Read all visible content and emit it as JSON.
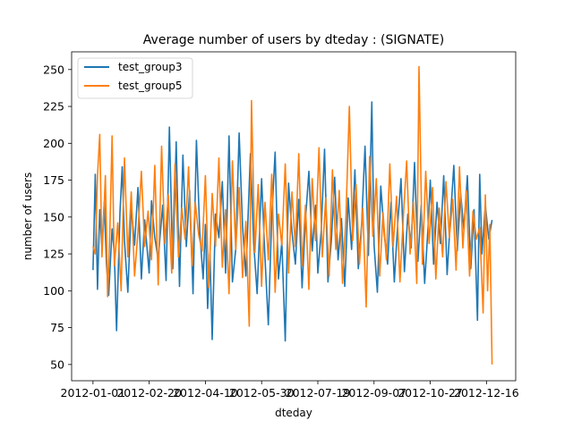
{
  "chart_data": {
    "type": "line",
    "title": "Average number of users by dteday : (SIGNATE)",
    "xlabel": "dteday",
    "ylabel": "number of users",
    "x_range": [
      "2011-12-13",
      "2013-01-11"
    ],
    "ylim": [
      39,
      262
    ],
    "x_ticks": [
      "2012-01-01",
      "2012-02-20",
      "2012-04-10",
      "2012-05-30",
      "2012-07-19",
      "2012-09-07",
      "2012-10-27",
      "2012-12-16"
    ],
    "y_ticks": [
      50,
      75,
      100,
      125,
      150,
      175,
      200,
      225,
      250
    ],
    "legend_position": "top-left",
    "grid": false,
    "series": [
      {
        "name": "test_group3",
        "color": "#1f77b4",
        "points": [
          [
            "2012-01-01",
            114
          ],
          [
            "2012-01-03",
            179
          ],
          [
            "2012-01-05",
            101
          ],
          [
            "2012-01-07",
            155
          ],
          [
            "2012-01-09",
            128
          ],
          [
            "2012-01-11",
            160
          ],
          [
            "2012-01-13",
            118
          ],
          [
            "2012-01-15",
            97
          ],
          [
            "2012-01-18",
            142
          ],
          [
            "2012-01-20",
            125
          ],
          [
            "2012-01-22",
            73
          ],
          [
            "2012-01-25",
            153
          ],
          [
            "2012-01-27",
            184
          ],
          [
            "2012-01-29",
            134
          ],
          [
            "2012-02-01",
            99
          ],
          [
            "2012-02-04",
            157
          ],
          [
            "2012-02-07",
            131
          ],
          [
            "2012-02-10",
            170
          ],
          [
            "2012-02-13",
            108
          ],
          [
            "2012-02-16",
            148
          ],
          [
            "2012-02-20",
            112
          ],
          [
            "2012-02-22",
            161
          ],
          [
            "2012-02-25",
            136
          ],
          [
            "2012-02-28",
            121
          ],
          [
            "2012-03-03",
            158
          ],
          [
            "2012-03-06",
            107
          ],
          [
            "2012-03-09",
            211
          ],
          [
            "2012-03-12",
            115
          ],
          [
            "2012-03-15",
            201
          ],
          [
            "2012-03-18",
            103
          ],
          [
            "2012-03-21",
            192
          ],
          [
            "2012-03-24",
            130
          ],
          [
            "2012-03-27",
            168
          ],
          [
            "2012-03-30",
            98
          ],
          [
            "2012-04-02",
            202
          ],
          [
            "2012-04-05",
            140
          ],
          [
            "2012-04-08",
            108
          ],
          [
            "2012-04-10",
            145
          ],
          [
            "2012-04-12",
            88
          ],
          [
            "2012-04-14",
            125
          ],
          [
            "2012-04-16",
            67
          ],
          [
            "2012-04-19",
            152
          ],
          [
            "2012-04-22",
            136
          ],
          [
            "2012-04-25",
            174
          ],
          [
            "2012-04-28",
            112
          ],
          [
            "2012-05-01",
            205
          ],
          [
            "2012-05-04",
            106
          ],
          [
            "2012-05-07",
            128
          ],
          [
            "2012-05-10",
            207
          ],
          [
            "2012-05-13",
            144
          ],
          [
            "2012-05-16",
            110
          ],
          [
            "2012-05-20",
            193
          ],
          [
            "2012-05-23",
            132
          ],
          [
            "2012-05-26",
            98
          ],
          [
            "2012-05-30",
            176
          ],
          [
            "2012-06-02",
            122
          ],
          [
            "2012-06-05",
            77
          ],
          [
            "2012-06-08",
            150
          ],
          [
            "2012-06-11",
            194
          ],
          [
            "2012-06-14",
            108
          ],
          [
            "2012-06-17",
            133
          ],
          [
            "2012-06-20",
            66
          ],
          [
            "2012-06-23",
            173
          ],
          [
            "2012-06-26",
            140
          ],
          [
            "2012-06-29",
            118
          ],
          [
            "2012-07-02",
            162
          ],
          [
            "2012-07-05",
            102
          ],
          [
            "2012-07-08",
            148
          ],
          [
            "2012-07-11",
            181
          ],
          [
            "2012-07-14",
            127
          ],
          [
            "2012-07-17",
            158
          ],
          [
            "2012-07-19",
            112
          ],
          [
            "2012-07-22",
            141
          ],
          [
            "2012-07-25",
            196
          ],
          [
            "2012-07-28",
            106
          ],
          [
            "2012-07-31",
            134
          ],
          [
            "2012-08-03",
            177
          ],
          [
            "2012-08-06",
            121
          ],
          [
            "2012-08-09",
            149
          ],
          [
            "2012-08-12",
            103
          ],
          [
            "2012-08-15",
            163
          ],
          [
            "2012-08-18",
            128
          ],
          [
            "2012-08-21",
            182
          ],
          [
            "2012-08-24",
            115
          ],
          [
            "2012-08-27",
            146
          ],
          [
            "2012-08-30",
            198
          ],
          [
            "2012-09-02",
            124
          ],
          [
            "2012-09-05",
            228
          ],
          [
            "2012-09-07",
            131
          ],
          [
            "2012-09-10",
            99
          ],
          [
            "2012-09-13",
            171
          ],
          [
            "2012-09-16",
            139
          ],
          [
            "2012-09-19",
            118
          ],
          [
            "2012-09-22",
            160
          ],
          [
            "2012-09-25",
            106
          ],
          [
            "2012-09-28",
            145
          ],
          [
            "2012-10-01",
            176
          ],
          [
            "2012-10-04",
            113
          ],
          [
            "2012-10-07",
            152
          ],
          [
            "2012-10-10",
            129
          ],
          [
            "2012-10-13",
            187
          ],
          [
            "2012-10-16",
            120
          ],
          [
            "2012-10-19",
            158
          ],
          [
            "2012-10-22",
            105
          ],
          [
            "2012-10-25",
            143
          ],
          [
            "2012-10-27",
            175
          ],
          [
            "2012-10-30",
            118
          ],
          [
            "2012-11-02",
            160
          ],
          [
            "2012-11-05",
            132
          ],
          [
            "2012-11-08",
            178
          ],
          [
            "2012-11-11",
            111
          ],
          [
            "2012-11-14",
            150
          ],
          [
            "2012-11-17",
            185
          ],
          [
            "2012-11-20",
            127
          ],
          [
            "2012-11-23",
            166
          ],
          [
            "2012-11-26",
            141
          ],
          [
            "2012-11-29",
            178
          ],
          [
            "2012-12-02",
            115
          ],
          [
            "2012-12-05",
            155
          ],
          [
            "2012-12-08",
            80
          ],
          [
            "2012-12-10",
            179
          ],
          [
            "2012-12-12",
            125
          ],
          [
            "2012-12-15",
            158
          ],
          [
            "2012-12-18",
            135
          ],
          [
            "2012-12-21",
            148
          ]
        ]
      },
      {
        "name": "test_group5",
        "color": "#ff7f0e",
        "points": [
          [
            "2012-01-01",
            130
          ],
          [
            "2012-01-03",
            125
          ],
          [
            "2012-01-05",
            178
          ],
          [
            "2012-01-07",
            206
          ],
          [
            "2012-01-09",
            123
          ],
          [
            "2012-01-12",
            178
          ],
          [
            "2012-01-14",
            96
          ],
          [
            "2012-01-16",
            140
          ],
          [
            "2012-01-18",
            205
          ],
          [
            "2012-01-20",
            117
          ],
          [
            "2012-01-23",
            146
          ],
          [
            "2012-01-26",
            100
          ],
          [
            "2012-01-29",
            190
          ],
          [
            "2012-02-01",
            123
          ],
          [
            "2012-02-04",
            167
          ],
          [
            "2012-02-07",
            110
          ],
          [
            "2012-02-10",
            140
          ],
          [
            "2012-02-13",
            181
          ],
          [
            "2012-02-16",
            130
          ],
          [
            "2012-02-19",
            154
          ],
          [
            "2012-02-22",
            121
          ],
          [
            "2012-02-25",
            185
          ],
          [
            "2012-02-28",
            104
          ],
          [
            "2012-03-02",
            198
          ],
          [
            "2012-03-05",
            132
          ],
          [
            "2012-03-08",
            165
          ],
          [
            "2012-03-11",
            112
          ],
          [
            "2012-03-14",
            186
          ],
          [
            "2012-03-17",
            123
          ],
          [
            "2012-03-20",
            156
          ],
          [
            "2012-03-23",
            135
          ],
          [
            "2012-03-26",
            184
          ],
          [
            "2012-03-29",
            117
          ],
          [
            "2012-04-01",
            160
          ],
          [
            "2012-04-04",
            138
          ],
          [
            "2012-04-07",
            127
          ],
          [
            "2012-04-10",
            178
          ],
          [
            "2012-04-13",
            102
          ],
          [
            "2012-04-16",
            166
          ],
          [
            "2012-04-19",
            130
          ],
          [
            "2012-04-22",
            190
          ],
          [
            "2012-04-25",
            116
          ],
          [
            "2012-04-28",
            155
          ],
          [
            "2012-05-01",
            98
          ],
          [
            "2012-05-04",
            188
          ],
          [
            "2012-05-07",
            128
          ],
          [
            "2012-05-10",
            170
          ],
          [
            "2012-05-13",
            109
          ],
          [
            "2012-05-16",
            147
          ],
          [
            "2012-05-19",
            76
          ],
          [
            "2012-05-21",
            229
          ],
          [
            "2012-05-24",
            126
          ],
          [
            "2012-05-27",
            172
          ],
          [
            "2012-05-30",
            103
          ],
          [
            "2012-06-02",
            160
          ],
          [
            "2012-06-05",
            121
          ],
          [
            "2012-06-08",
            179
          ],
          [
            "2012-06-11",
            99
          ],
          [
            "2012-06-14",
            152
          ],
          [
            "2012-06-17",
            131
          ],
          [
            "2012-06-20",
            186
          ],
          [
            "2012-06-23",
            112
          ],
          [
            "2012-06-26",
            167
          ],
          [
            "2012-06-29",
            130
          ],
          [
            "2012-07-02",
            193
          ],
          [
            "2012-07-05",
            117
          ],
          [
            "2012-07-08",
            158
          ],
          [
            "2012-07-11",
            101
          ],
          [
            "2012-07-14",
            176
          ],
          [
            "2012-07-17",
            134
          ],
          [
            "2012-07-20",
            197
          ],
          [
            "2012-07-23",
            123
          ],
          [
            "2012-07-26",
            163
          ],
          [
            "2012-07-29",
            110
          ],
          [
            "2012-08-01",
            182
          ],
          [
            "2012-08-04",
            128
          ],
          [
            "2012-08-07",
            168
          ],
          [
            "2012-08-10",
            105
          ],
          [
            "2012-08-13",
            150
          ],
          [
            "2012-08-16",
            225
          ],
          [
            "2012-08-19",
            134
          ],
          [
            "2012-08-22",
            172
          ],
          [
            "2012-08-25",
            118
          ],
          [
            "2012-08-28",
            156
          ],
          [
            "2012-08-31",
            89
          ],
          [
            "2012-09-03",
            191
          ],
          [
            "2012-09-06",
            137
          ],
          [
            "2012-09-09",
            176
          ],
          [
            "2012-09-12",
            110
          ],
          [
            "2012-09-15",
            153
          ],
          [
            "2012-09-18",
            121
          ],
          [
            "2012-09-21",
            186
          ],
          [
            "2012-09-24",
            130
          ],
          [
            "2012-09-27",
            164
          ],
          [
            "2012-09-30",
            106
          ],
          [
            "2012-10-03",
            149
          ],
          [
            "2012-10-06",
            188
          ],
          [
            "2012-10-09",
            125
          ],
          [
            "2012-10-12",
            160
          ],
          [
            "2012-10-15",
            105
          ],
          [
            "2012-10-17",
            252
          ],
          [
            "2012-10-20",
            118
          ],
          [
            "2012-10-23",
            181
          ],
          [
            "2012-10-26",
            132
          ],
          [
            "2012-10-29",
            170
          ],
          [
            "2012-11-01",
            108
          ],
          [
            "2012-11-04",
            156
          ],
          [
            "2012-11-07",
            123
          ],
          [
            "2012-11-10",
            174
          ],
          [
            "2012-11-13",
            136
          ],
          [
            "2012-11-16",
            162
          ],
          [
            "2012-11-19",
            114
          ],
          [
            "2012-11-22",
            184
          ],
          [
            "2012-11-25",
            129
          ],
          [
            "2012-11-28",
            168
          ],
          [
            "2012-12-01",
            110
          ],
          [
            "2012-12-04",
            154
          ],
          [
            "2012-12-07",
            135
          ],
          [
            "2012-12-10",
            143
          ],
          [
            "2012-12-13",
            85
          ],
          [
            "2012-12-15",
            165
          ],
          [
            "2012-12-17",
            100
          ],
          [
            "2012-12-19",
            145
          ],
          [
            "2012-12-21",
            50
          ]
        ]
      }
    ]
  }
}
